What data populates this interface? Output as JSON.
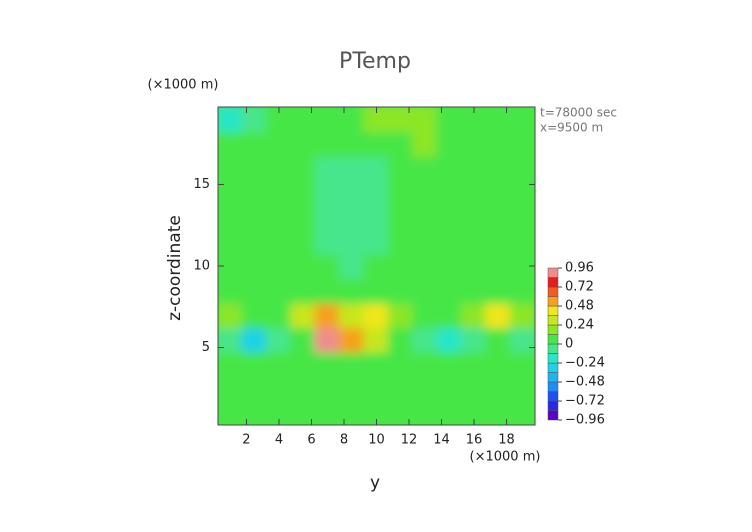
{
  "chart_data": {
    "type": "contour",
    "title": "PTemp",
    "ylabel": "z-coordinate",
    "xlabel": "y",
    "xunit": "(×1000 m)",
    "yunit": "(×1000 m)",
    "annotations": [
      "t=78000 sec",
      "x=9500 m"
    ],
    "xlim": [
      0.25,
      19.75
    ],
    "ylim": [
      0.25,
      19.75
    ],
    "xticks": [
      2,
      4,
      6,
      8,
      10,
      12,
      14,
      16,
      18
    ],
    "yticks": [
      5,
      10,
      15
    ],
    "x": [
      1,
      2.5,
      4,
      5.5,
      7,
      8.5,
      10,
      11.5,
      13,
      14.5,
      16,
      17.5,
      19
    ],
    "y": [
      1,
      2.5,
      4,
      5.5,
      7,
      8.5,
      10,
      11.5,
      13,
      14.5,
      16,
      17.5,
      19
    ],
    "z": [
      [
        0.05,
        0.04,
        0.06,
        0.05,
        0.04,
        0.05,
        0.06,
        0.05,
        0.04,
        0.05,
        0.06,
        0.05,
        0.04
      ],
      [
        0.04,
        0.05,
        0.03,
        0.06,
        0.05,
        0.04,
        0.05,
        0.06,
        0.05,
        0.04,
        0.05,
        0.05,
        0.04
      ],
      [
        0.03,
        0.05,
        0.04,
        0.05,
        0.06,
        0.04,
        0.05,
        0.04,
        0.03,
        0.05,
        0.04,
        0.05,
        0.04
      ],
      [
        -0.12,
        -0.3,
        -0.05,
        0.1,
        0.9,
        0.5,
        0.3,
        0.08,
        -0.05,
        -0.15,
        -0.1,
        0.05,
        -0.08
      ],
      [
        0.12,
        0.05,
        0.08,
        0.25,
        0.5,
        0.3,
        0.4,
        0.12,
        0.08,
        0.1,
        0.15,
        0.4,
        0.15
      ],
      [
        0.05,
        0.04,
        0.05,
        0.06,
        0.05,
        0.04,
        0.05,
        0.05,
        0.06,
        0.05,
        0.04,
        0.05,
        0.05
      ],
      [
        0.06,
        0.05,
        0.04,
        0.02,
        0.0,
        -0.02,
        0.02,
        0.05,
        0.04,
        0.05,
        0.06,
        0.05,
        0.04
      ],
      [
        0.05,
        0.04,
        0.06,
        0.02,
        -0.03,
        -0.05,
        -0.02,
        0.03,
        0.06,
        0.04,
        0.05,
        0.06,
        0.05
      ],
      [
        0.04,
        0.05,
        0.05,
        0.06,
        -0.02,
        -0.06,
        -0.04,
        0.02,
        0.08,
        0.06,
        0.05,
        0.04,
        0.05
      ],
      [
        0.06,
        0.05,
        0.04,
        0.03,
        -0.04,
        -0.08,
        -0.06,
        0.0,
        0.1,
        0.05,
        0.04,
        0.06,
        0.05
      ],
      [
        0.05,
        0.06,
        0.08,
        0.04,
        -0.02,
        -0.05,
        -0.03,
        0.04,
        0.05,
        0.04,
        0.05,
        0.05,
        0.04
      ],
      [
        0.02,
        0.04,
        0.05,
        0.06,
        0.03,
        0.02,
        0.06,
        0.1,
        0.14,
        0.06,
        0.05,
        0.04,
        0.06
      ],
      [
        -0.15,
        -0.1,
        0.04,
        0.06,
        0.08,
        0.1,
        0.12,
        0.16,
        0.14,
        0.1,
        0.06,
        0.05,
        0.04
      ]
    ],
    "clim": [
      -0.96,
      0.96
    ],
    "colors": [
      "#5a00c8",
      "#2828e6",
      "#1e50f0",
      "#1e8cf5",
      "#1eb4f0",
      "#1ed2e6",
      "#28e6c8",
      "#46e68c",
      "#46e646",
      "#8ce628",
      "#c8e61e",
      "#f0e61e",
      "#f5a01e",
      "#f55a1e",
      "#e61e1e",
      "#f08c8c"
    ],
    "cticks": [
      0.96,
      0.72,
      0.48,
      0.24,
      0,
      {
        "value": -0.24,
        "label": "−0.24"
      },
      {
        "value": -0.48,
        "label": "−0.48"
      },
      {
        "value": -0.72,
        "label": "−0.72"
      },
      {
        "value": -0.96,
        "label": "−0.96"
      }
    ]
  }
}
